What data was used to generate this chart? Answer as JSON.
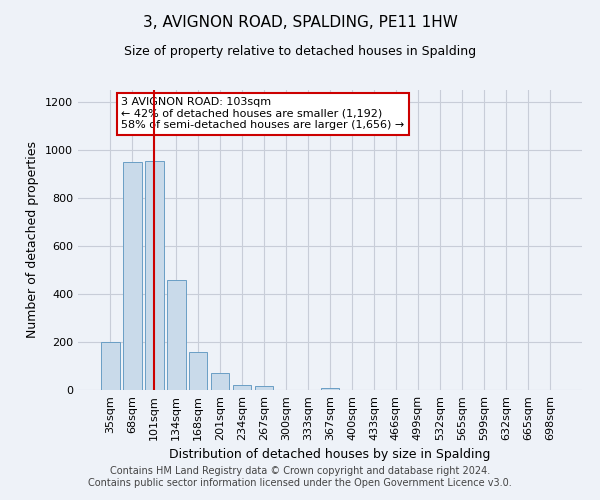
{
  "title": "3, AVIGNON ROAD, SPALDING, PE11 1HW",
  "subtitle": "Size of property relative to detached houses in Spalding",
  "xlabel": "Distribution of detached houses by size in Spalding",
  "ylabel": "Number of detached properties",
  "categories": [
    "35sqm",
    "68sqm",
    "101sqm",
    "134sqm",
    "168sqm",
    "201sqm",
    "234sqm",
    "267sqm",
    "300sqm",
    "333sqm",
    "367sqm",
    "400sqm",
    "433sqm",
    "466sqm",
    "499sqm",
    "532sqm",
    "565sqm",
    "599sqm",
    "632sqm",
    "665sqm",
    "698sqm"
  ],
  "values": [
    200,
    950,
    955,
    460,
    160,
    70,
    22,
    15,
    0,
    0,
    10,
    0,
    0,
    0,
    0,
    0,
    0,
    0,
    0,
    0,
    0
  ],
  "bar_color": "#c9daea",
  "bar_edge_color": "#6a9ec5",
  "highlight_bar_index": 2,
  "highlight_line_color": "#cc0000",
  "ylim": [
    0,
    1250
  ],
  "yticks": [
    0,
    200,
    400,
    600,
    800,
    1000,
    1200
  ],
  "annotation_text": "3 AVIGNON ROAD: 103sqm\n← 42% of detached houses are smaller (1,192)\n58% of semi-detached houses are larger (1,656) →",
  "annotation_box_facecolor": "#ffffff",
  "annotation_box_edgecolor": "#cc0000",
  "footer_line1": "Contains HM Land Registry data © Crown copyright and database right 2024.",
  "footer_line2": "Contains public sector information licensed under the Open Government Licence v3.0.",
  "background_color": "#eef2f8",
  "grid_color": "#c8cdd8",
  "title_fontsize": 11,
  "subtitle_fontsize": 9,
  "xlabel_fontsize": 9,
  "ylabel_fontsize": 9,
  "tick_fontsize": 8,
  "annotation_fontsize": 8,
  "footer_fontsize": 7
}
